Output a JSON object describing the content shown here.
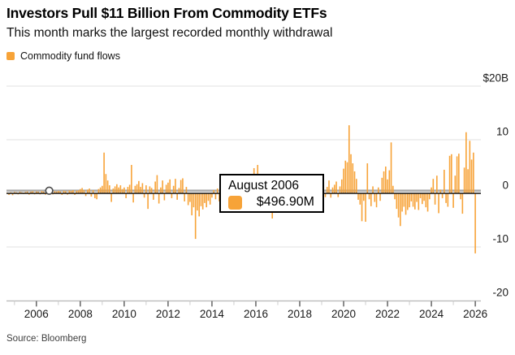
{
  "header": {
    "title": "Investors Pull $11 Billion From Commodity ETFs",
    "subtitle": "This month marks the largest recorded monthly withdrawal"
  },
  "legend": {
    "label": "Commodity fund flows"
  },
  "tooltip": {
    "date_label": "August 2006",
    "value_label": "$496.90M"
  },
  "source": "Source: Bloomberg",
  "colors": {
    "bar": "#F7A338",
    "grid": "#e0e0e0",
    "axis_line": "#b5b5b5",
    "zero_line": "#111111",
    "crosshair": "#adadad",
    "tick_major": "#4d4d4d",
    "tick_minor": "#cdcdcd",
    "label_text": "#1a1a1a",
    "marker_stroke": "#4a4a4a"
  },
  "chart_data": {
    "type": "bar",
    "title": "Commodity fund flows",
    "unit": "billions USD per month",
    "start_month": "2004-09",
    "end_month": "2026-01",
    "y_axis": {
      "labels": [
        "$20B",
        "10",
        "0",
        "-10",
        "-20"
      ],
      "values": [
        20,
        10,
        0,
        -10,
        -20
      ],
      "range": [
        -20,
        20
      ],
      "grid": true
    },
    "x_axis": {
      "major_tick_years": [
        "2006",
        "2008",
        "2010",
        "2012",
        "2014",
        "2016",
        "2018",
        "2020",
        "2022",
        "2024",
        "2026"
      ],
      "minor_ticks_between": true
    },
    "highlight": {
      "month": "2006-08",
      "index": 23,
      "value_billions": 0.4969,
      "display": "$496.90M"
    },
    "values": [
      0.15,
      -0.3,
      0.2,
      -0.35,
      0.25,
      0.2,
      -0.2,
      0.3,
      0.2,
      -0.15,
      0.25,
      0.35,
      -0.25,
      0.3,
      0.4,
      -0.2,
      0.35,
      0.3,
      -0.2,
      0.45,
      0.3,
      -0.25,
      0.4,
      0.4969,
      0.35,
      -0.2,
      0.4,
      0.3,
      0.45,
      0.35,
      -0.3,
      0.5,
      0.4,
      -0.25,
      0.55,
      0.45,
      0.6,
      -0.3,
      0.5,
      0.55,
      0.8,
      1.0,
      0.6,
      -0.5,
      0.7,
      0.9,
      -0.6,
      0.6,
      -0.9,
      -1.1,
      0.8,
      1.1,
      1.4,
      7.6,
      3.6,
      2.4,
      1.5,
      -1.6,
      0.9,
      1.3,
      1.7,
      1.1,
      1.5,
      0.8,
      1.1,
      -0.9,
      1.2,
      1.6,
      5.3,
      -1.7,
      1.4,
      1.7,
      2.3,
      1.2,
      1.9,
      -0.8,
      1.5,
      -2.9,
      1.3,
      1.0,
      -1.2,
      2.2,
      3.4,
      -1.9,
      1.1,
      2.4,
      -1.3,
      1.6,
      2.0,
      2.6,
      -0.9,
      1.4,
      2.7,
      -1.2,
      1.0,
      2.5,
      2.8,
      -1.5,
      1.2,
      -2.2,
      -1.6,
      -4.1,
      -2.6,
      -8.5,
      -3.2,
      -4.3,
      -2.4,
      -3.0,
      -1.8,
      -2.6,
      -1.4,
      -2.1,
      -0.8,
      0.6,
      -1.1,
      0.9,
      -1.5,
      -0.7,
      0.8,
      -1.2,
      -0.9,
      -2.3,
      -1.0,
      -1.6,
      -0.7,
      1.1,
      -1.8,
      -0.9,
      -1.3,
      -2.6,
      -0.8,
      -3.3,
      -1.5,
      -0.9,
      -1.2,
      4.7,
      3.2,
      5.3,
      2.9,
      1.6,
      1.1,
      2.4,
      1.8,
      -0.9,
      1.3,
      -4.7,
      -1.2,
      -0.8,
      0.9,
      -1.4,
      1.1,
      -0.8,
      0.7,
      -1.9,
      -1.1,
      0.8,
      -0.7,
      -1.3,
      0.6,
      -0.9,
      1.2,
      -0.7,
      0.9,
      -1.1,
      -0.8,
      -1.5,
      -0.9,
      -1.8,
      -1.1,
      -0.7,
      -1.2,
      -0.6,
      0.8,
      2.1,
      -0.7,
      1.2,
      2.4,
      -0.8,
      1.1,
      1.6,
      2.2,
      -0.7,
      1.3,
      2.6,
      4.6,
      6.1,
      5.8,
      12.7,
      7.3,
      5.6,
      4.1,
      2.7,
      -1.2,
      -2.1,
      -5.2,
      -1.4,
      -5.3,
      5.6,
      -1.1,
      -2.4,
      1.3,
      -1.6,
      -2.6,
      1.1,
      -1.4,
      2.9,
      4.1,
      5.0,
      2.6,
      4.3,
      9.5,
      1.4,
      -1.1,
      -2.9,
      -4.5,
      -6.1,
      -3.4,
      -2.5,
      -4.0,
      -3.1,
      -2.6,
      -1.5,
      -2.5,
      -3.0,
      -1.6,
      -3.1,
      -0.9,
      -2.0,
      -1.4,
      -2.6,
      -3.4,
      -1.1,
      1.1,
      2.7,
      -2.1,
      3.3,
      -3.7,
      0.7,
      -0.9,
      4.4,
      -1.8,
      -2.5,
      7.0,
      7.3,
      -2.7,
      3.3,
      6.9,
      7.4,
      -1.1,
      -3.8,
      4.8,
      11.4,
      4.5,
      9.8,
      6.3,
      7.6,
      -11.2
    ]
  }
}
